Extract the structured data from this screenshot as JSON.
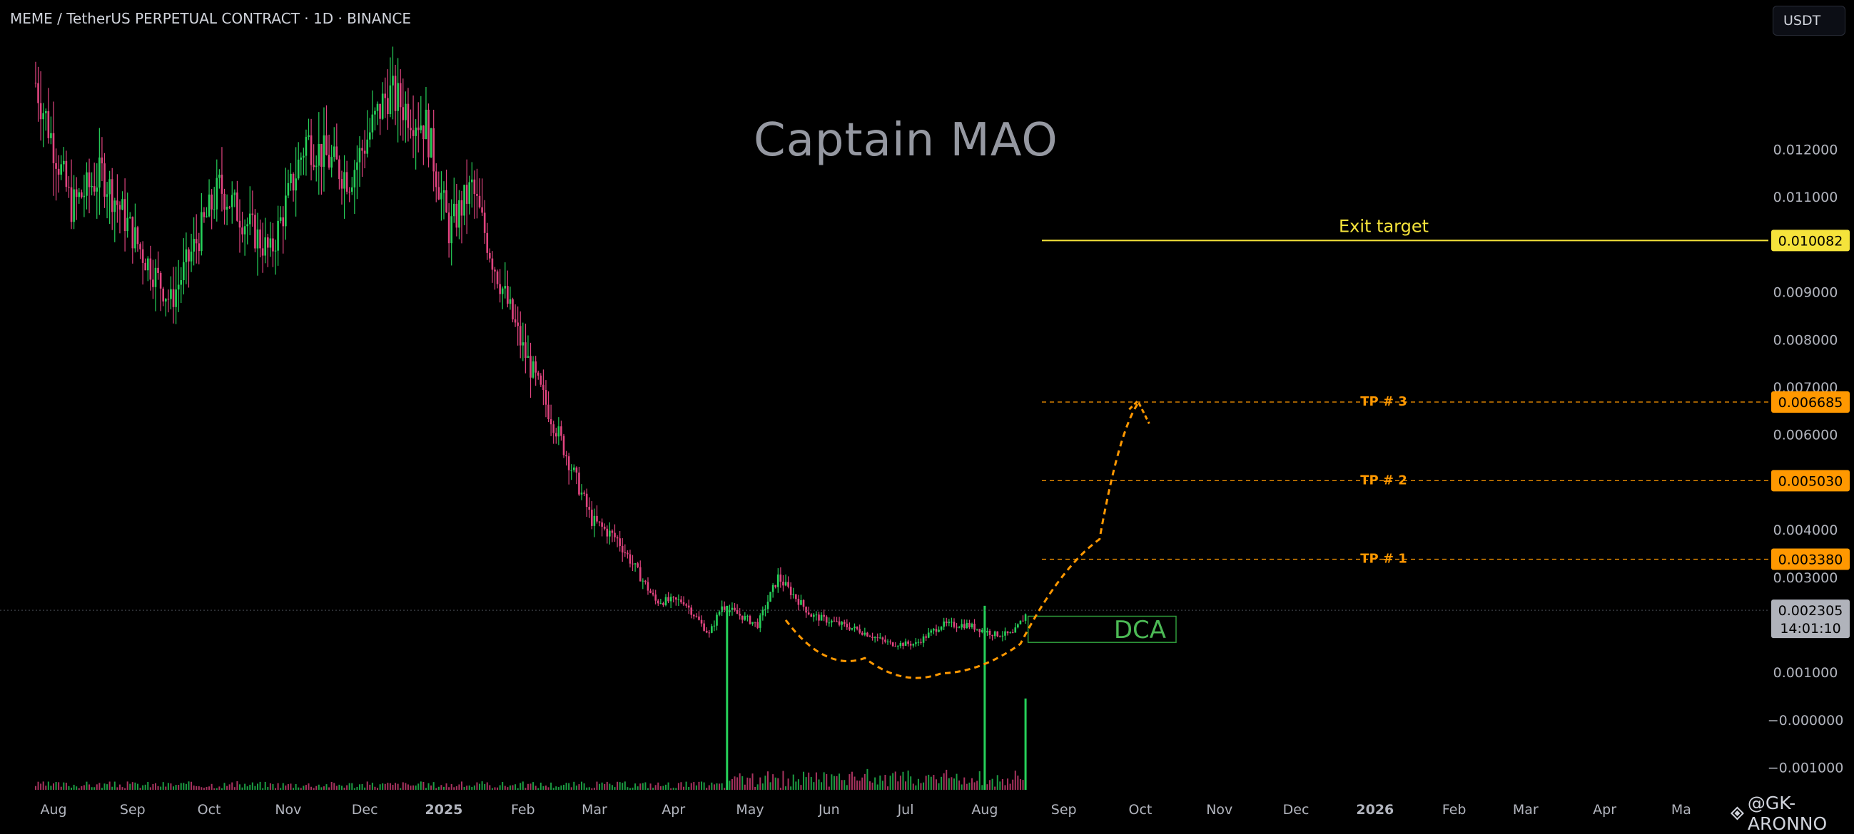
{
  "header": {
    "symbol_title": "MEME / TetherUS PERPETUAL CONTRACT · 1D · BINANCE",
    "currency": "USDT"
  },
  "watermark": "Captain MAO",
  "attribution": "@GK-ARONNO",
  "colors": {
    "up": "#26d15a",
    "down": "#e0447f",
    "exit": "#f5e33b",
    "tp": "#ff9800",
    "dca": "#2f9a3a",
    "grid_text": "#b2b5be",
    "current_price_bg": "#b0b3bb"
  },
  "chart_data": {
    "type": "candlestick",
    "x_ticks": [
      "Aug",
      "Sep",
      "Oct",
      "Nov",
      "Dec",
      "2025",
      "Feb",
      "Mar",
      "Apr",
      "May",
      "Jun",
      "Jul",
      "Aug",
      "Sep",
      "Oct",
      "Nov",
      "Dec",
      "2026",
      "Feb",
      "Mar",
      "Apr",
      "Ma"
    ],
    "y_ticks": [
      "0.012000",
      "0.011000",
      "0.009000",
      "0.008000",
      "0.007000",
      "0.006000",
      "0.004000",
      "0.003000",
      "0.001000",
      "−0.000000",
      "−0.001000"
    ],
    "y_tick_values": [
      0.012,
      0.011,
      0.009,
      0.008,
      0.007,
      0.006,
      0.004,
      0.003,
      0.001,
      0.0,
      -0.001
    ],
    "ylim": [
      -0.00147,
      0.01475
    ],
    "price_path": {
      "dates": [
        "2024-07-25",
        "2024-08-08",
        "2024-08-20",
        "2024-09-05",
        "2024-09-16",
        "2024-10-05",
        "2024-10-25",
        "2024-11-08",
        "2024-11-25",
        "2024-12-10",
        "2024-12-25",
        "2025-01-03",
        "2025-01-12",
        "2025-01-20",
        "2025-02-01",
        "2025-02-15",
        "2025-02-28",
        "2025-03-10",
        "2025-03-25",
        "2025-04-05",
        "2025-04-15",
        "2025-04-20",
        "2025-05-04",
        "2025-05-12",
        "2025-05-25",
        "2025-06-12",
        "2025-06-25",
        "2025-07-05",
        "2025-07-15",
        "2025-07-25",
        "2025-08-05",
        "2025-08-12",
        "2025-08-18"
      ],
      "values": [
        0.0134,
        0.0108,
        0.0115,
        0.0098,
        0.0088,
        0.0112,
        0.0098,
        0.0122,
        0.0114,
        0.0132,
        0.0125,
        0.0103,
        0.0112,
        0.0097,
        0.0078,
        0.006,
        0.0042,
        0.0038,
        0.0025,
        0.0025,
        0.0018,
        0.0024,
        0.002,
        0.003,
        0.0022,
        0.0019,
        0.0016,
        0.0016,
        0.002,
        0.002,
        0.0018,
        0.0018,
        0.00229
      ]
    },
    "volume_spikes": [
      {
        "date": "2025-04-22",
        "value": 0.0024
      },
      {
        "date": "2025-08-01",
        "value": 0.0024
      },
      {
        "date": "2025-08-17",
        "value": 0.00045
      }
    ],
    "current_price": {
      "value": 0.002305,
      "label": "0.002305",
      "countdown": "14:01:10"
    },
    "levels": [
      {
        "name": "Exit target",
        "value": 0.010082,
        "label": "0.010082",
        "style": "solid",
        "color": "#f5e33b"
      },
      {
        "name": "TP # 3",
        "value": 0.006685,
        "label": "0.006685",
        "style": "dashed",
        "color": "#ff9800"
      },
      {
        "name": "TP # 2",
        "value": 0.00503,
        "label": "0.005030",
        "style": "dashed",
        "color": "#ff9800"
      },
      {
        "name": "TP # 1",
        "value": 0.00338,
        "label": "0.003380",
        "style": "dashed",
        "color": "#ff9800"
      }
    ],
    "dca_zone": {
      "label": "DCA",
      "from_date": "2025-08-18",
      "to_date": "2025-10-15",
      "low": 0.00163,
      "high": 0.00218
    },
    "projection": {
      "points": [
        {
          "date": "2025-05-15",
          "value": 0.0021
        },
        {
          "date": "2025-06-15",
          "value": 0.0013
        },
        {
          "date": "2025-07-15",
          "value": 0.00098
        },
        {
          "date": "2025-08-15",
          "value": 0.0016
        },
        {
          "date": "2025-09-15",
          "value": 0.0038
        },
        {
          "date": "2025-09-30",
          "value": 0.00665
        }
      ]
    }
  }
}
